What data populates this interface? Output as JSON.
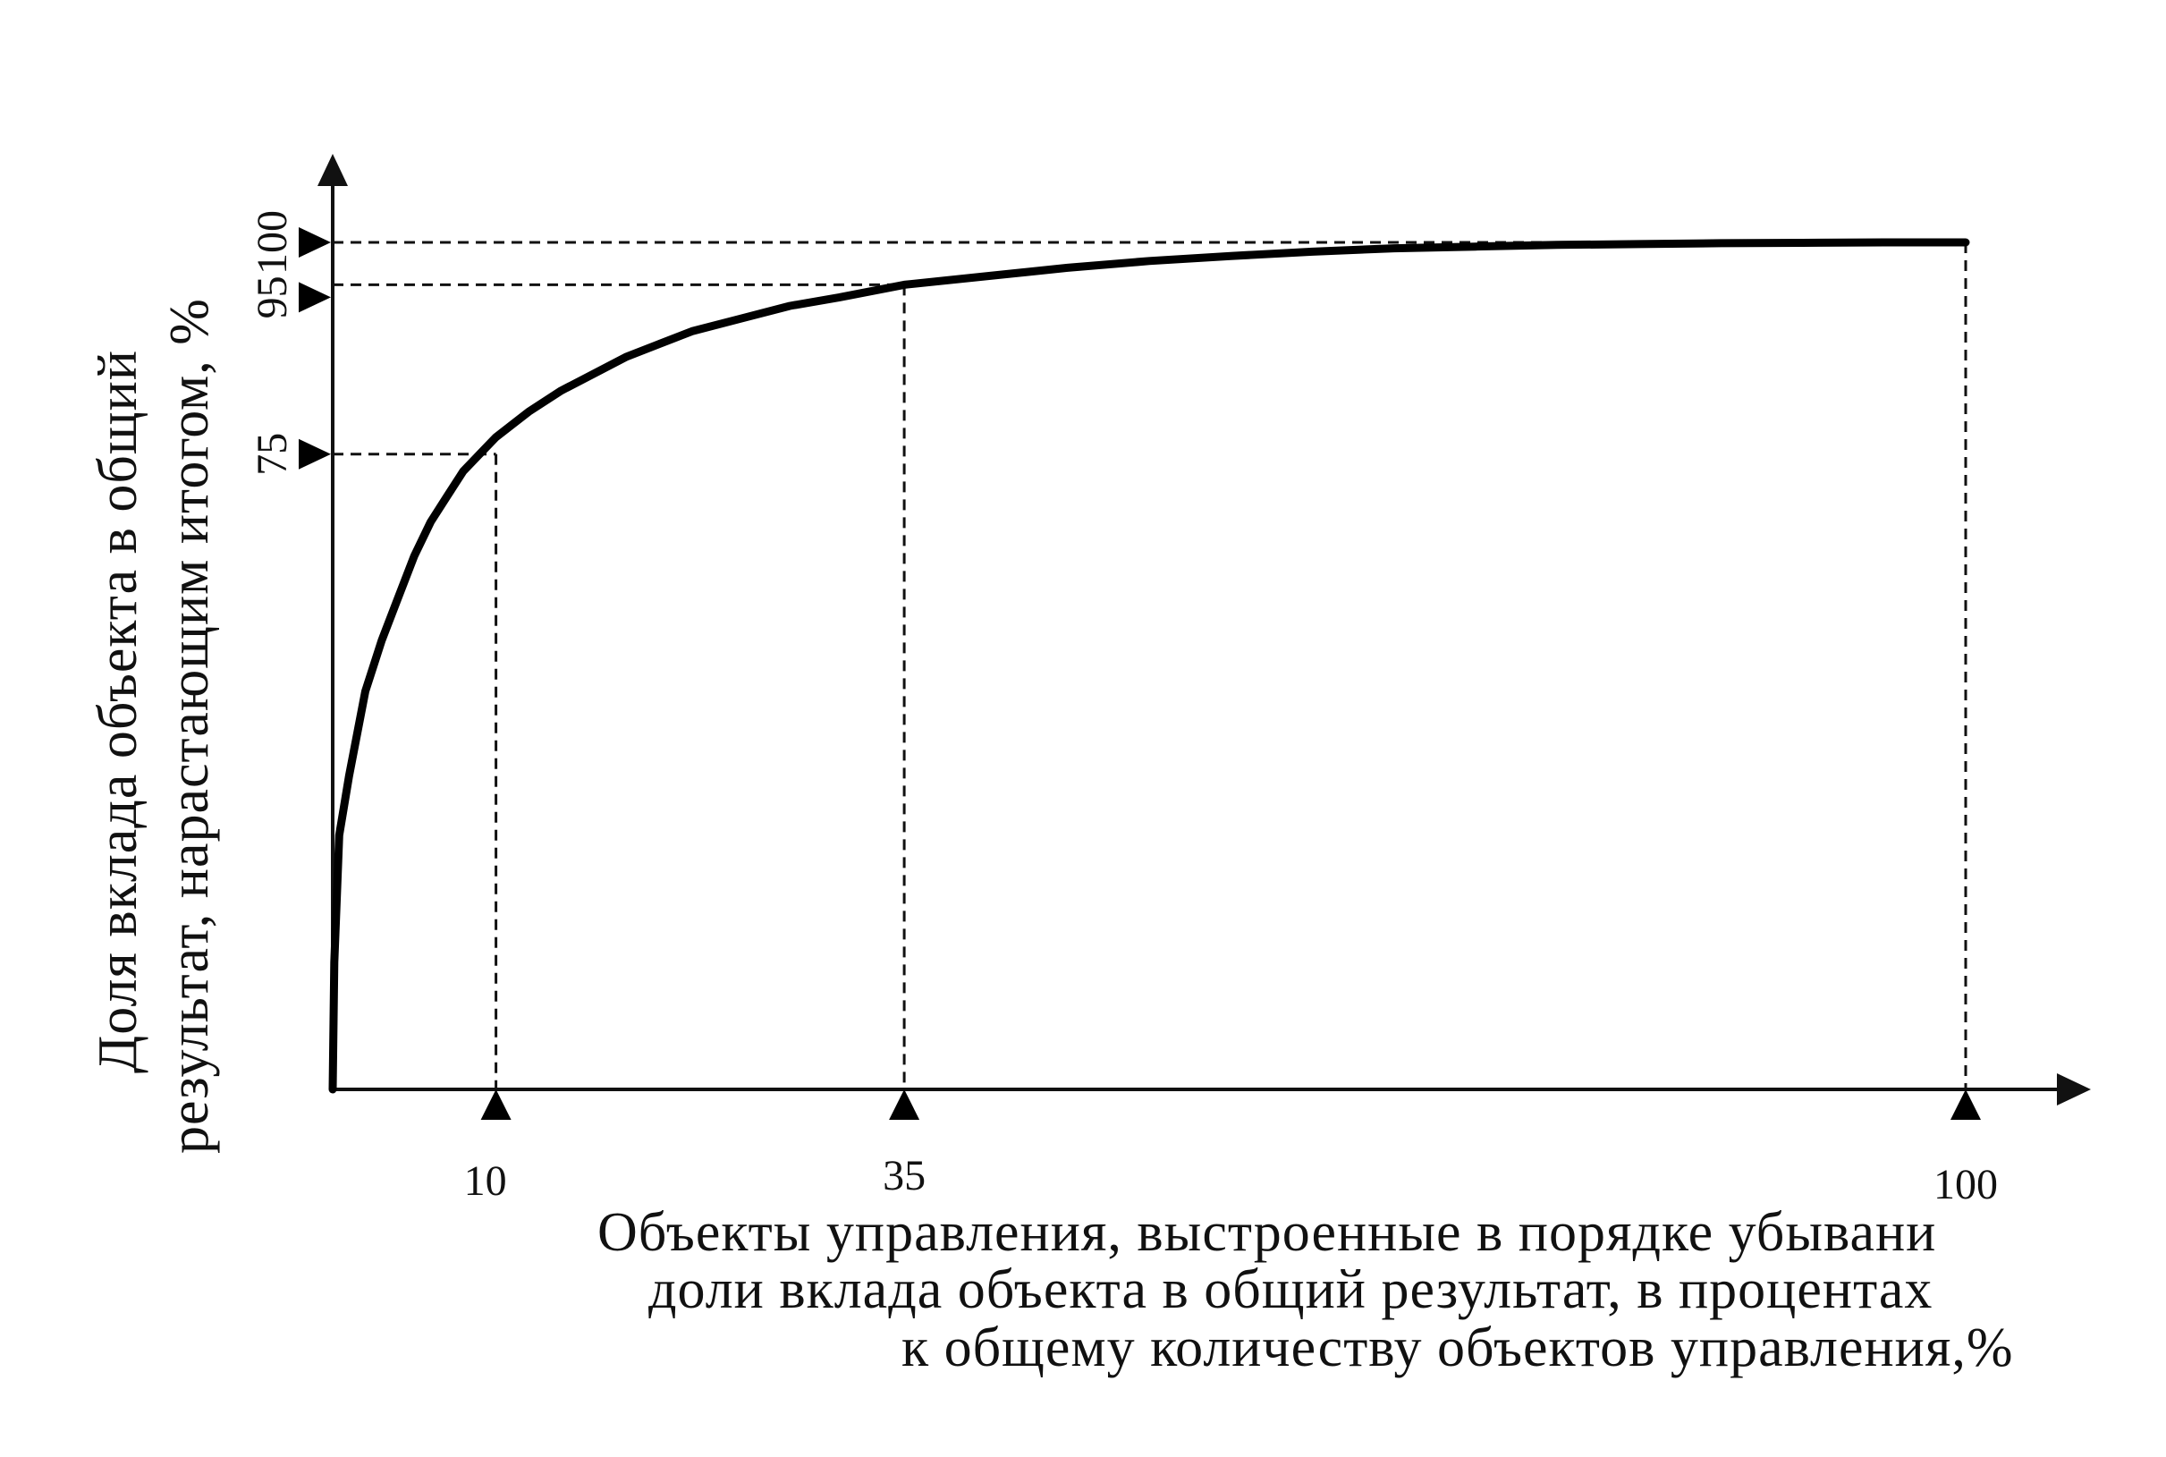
{
  "chart_data": {
    "type": "line",
    "ylabel_lines": [
      "Доля вклада объекта в общий",
      "результат, нарастающим итогом, %"
    ],
    "xlabel_lines": [
      "Объекты управления, выстроенные в порядке убывани",
      "доли вклада объекта в общий результат, в процентах",
      "к общему количеству объектов управления,%"
    ],
    "x_ticks": [
      {
        "value": 10,
        "label": "10"
      },
      {
        "value": 35,
        "label": "35"
      },
      {
        "value": 100,
        "label": "100"
      }
    ],
    "y_ticks": [
      {
        "value": 75,
        "label": "75"
      },
      {
        "value": 95,
        "label": "95"
      },
      {
        "value": 100,
        "label": "100"
      }
    ],
    "xlim": [
      0,
      108
    ],
    "ylim": [
      0,
      108
    ],
    "grid": false,
    "series": [
      {
        "x": [
          0,
          0.1,
          0.4,
          1,
          2,
          3,
          4,
          5,
          6,
          7,
          8,
          9,
          10,
          11,
          12,
          14,
          16,
          18,
          20,
          22,
          25,
          28,
          31,
          35,
          40,
          45,
          50,
          55,
          60,
          65,
          70,
          75,
          80,
          85,
          90,
          95,
          100
        ],
        "y": [
          0,
          15,
          30,
          37,
          47,
          53,
          58,
          63,
          67,
          70,
          73,
          75,
          77,
          78.5,
          80,
          82.5,
          84.5,
          86.5,
          88,
          89.5,
          91,
          92.5,
          93.5,
          95,
          96,
          97,
          97.8,
          98.4,
          98.9,
          99.3,
          99.5,
          99.7,
          99.8,
          99.9,
          99.95,
          100,
          100
        ]
      }
    ],
    "reference_lines": [
      {
        "x": 10,
        "y": 75
      },
      {
        "x": 35,
        "y": 95
      },
      {
        "x": 100,
        "y": 100
      }
    ]
  }
}
